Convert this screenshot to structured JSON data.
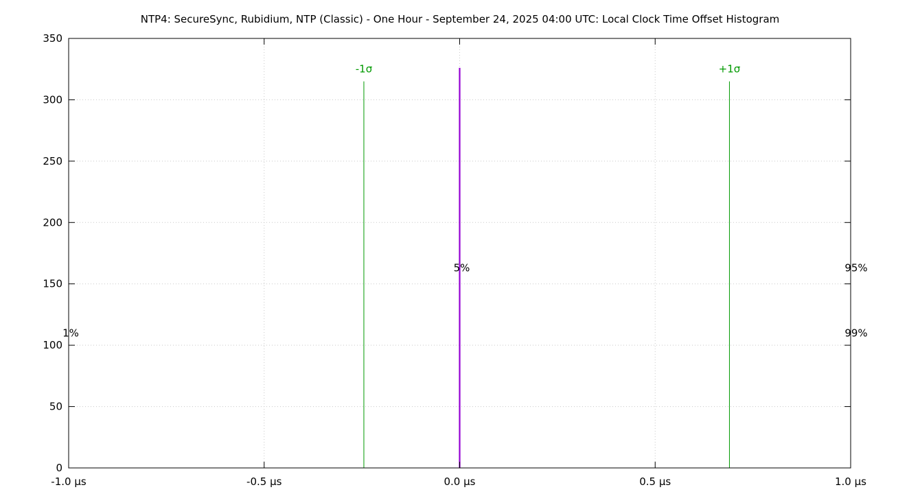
{
  "chart_data": {
    "type": "bar",
    "title": "NTP4: SecureSync, Rubidium, NTP (Classic) - One Hour - September 24, 2025 04:00 UTC: Local Clock Time Offset Histogram",
    "xlabel": "",
    "ylabel": "",
    "xlim": [
      -1.0,
      1.0
    ],
    "ylim": [
      0,
      350
    ],
    "x_unit": "µs",
    "x_ticks": [
      {
        "value": -1.0,
        "label": "-1.0 µs"
      },
      {
        "value": -0.5,
        "label": "-0.5 µs"
      },
      {
        "value": 0.0,
        "label": "0.0 µs"
      },
      {
        "value": 0.5,
        "label": "0.5 µs"
      },
      {
        "value": 1.0,
        "label": "1.0 µs"
      }
    ],
    "y_ticks": [
      {
        "value": 0,
        "label": "0"
      },
      {
        "value": 50,
        "label": "50"
      },
      {
        "value": 100,
        "label": "100"
      },
      {
        "value": 150,
        "label": "150"
      },
      {
        "value": 200,
        "label": "200"
      },
      {
        "value": 250,
        "label": "250"
      },
      {
        "value": 300,
        "label": "300"
      },
      {
        "value": 350,
        "label": "350"
      }
    ],
    "grid": true,
    "series": [
      {
        "color": "#9400d3",
        "points": [
          {
            "x": 0.0,
            "y": 326
          }
        ]
      }
    ],
    "sigma_markers": [
      {
        "label": "-1σ",
        "x": -0.245,
        "height": 315,
        "color": "#009900"
      },
      {
        "label": "+1σ",
        "x": 0.69,
        "height": 315,
        "color": "#009900"
      }
    ],
    "percentile_labels": [
      {
        "label": "1%",
        "x": -1.0,
        "y": 110,
        "align": "right"
      },
      {
        "label": "5%",
        "x": 0.0,
        "y": 163,
        "align": "center"
      },
      {
        "label": "95%",
        "x": 1.0,
        "y": 163,
        "align": "left"
      },
      {
        "label": "99%",
        "x": 1.0,
        "y": 110,
        "align": "left"
      }
    ]
  }
}
